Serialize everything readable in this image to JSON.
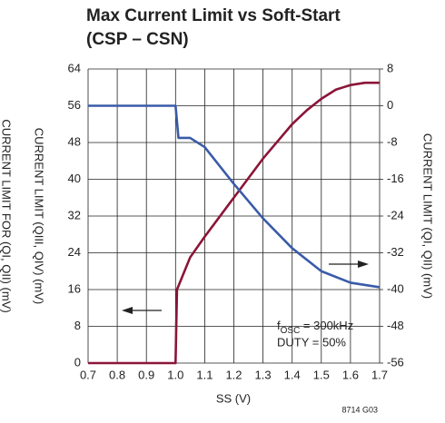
{
  "chart_data": {
    "type": "line",
    "title": [
      "Max Current Limit vs Soft-Start",
      "(CSP – CSN)"
    ],
    "xlabel": "SS (V)",
    "ylabel": [
      "CURRENT LIMIT (QIII, QIV) (mV)",
      "CURRENT LIMIT FOR (QI, QII) (mV)"
    ],
    "y2label": "CURRENT LIMIT (QI, QII) (mV)",
    "annotations": [
      "f",
      "OSC",
      " = 300kHz",
      "DUTY = 50%"
    ],
    "footnote": "8714 G03",
    "xlim": [
      0.7,
      1.7
    ],
    "xticks": [
      0.7,
      0.8,
      0.9,
      {
        "value": 1,
        "label": "1.0"
      },
      1.1,
      1.2,
      1.3,
      1.4,
      1.5,
      1.6,
      1.7
    ],
    "ylim": [
      0,
      64
    ],
    "yticks": [
      0,
      8,
      16,
      24,
      32,
      40,
      48,
      56,
      64
    ],
    "y2lim": [
      -56,
      8
    ],
    "y2ticks": [
      -56,
      -48,
      -40,
      -32,
      -24,
      -16,
      -8,
      0,
      8
    ],
    "grid": true,
    "series": [
      {
        "color": "#8b1538",
        "axis": "y",
        "x": [
          0.7,
          1.0,
          1.005,
          1.05,
          1.1,
          1.2,
          1.3,
          1.4,
          1.45,
          1.5,
          1.55,
          1.6,
          1.65,
          1.7
        ],
        "values": [
          0,
          0,
          16,
          23,
          27.5,
          36,
          44.5,
          52,
          55,
          57.5,
          59.5,
          60.5,
          61,
          61
        ]
      },
      {
        "color": "#3a5ba8",
        "axis": "y2",
        "x": [
          0.7,
          1.0,
          1.01,
          1.05,
          1.1,
          1.2,
          1.3,
          1.4,
          1.5,
          1.6,
          1.7
        ],
        "values": [
          0,
          0,
          -7,
          -7,
          -9,
          -17,
          -24.5,
          -31,
          -36,
          -38.5,
          -39.5
        ]
      }
    ]
  }
}
